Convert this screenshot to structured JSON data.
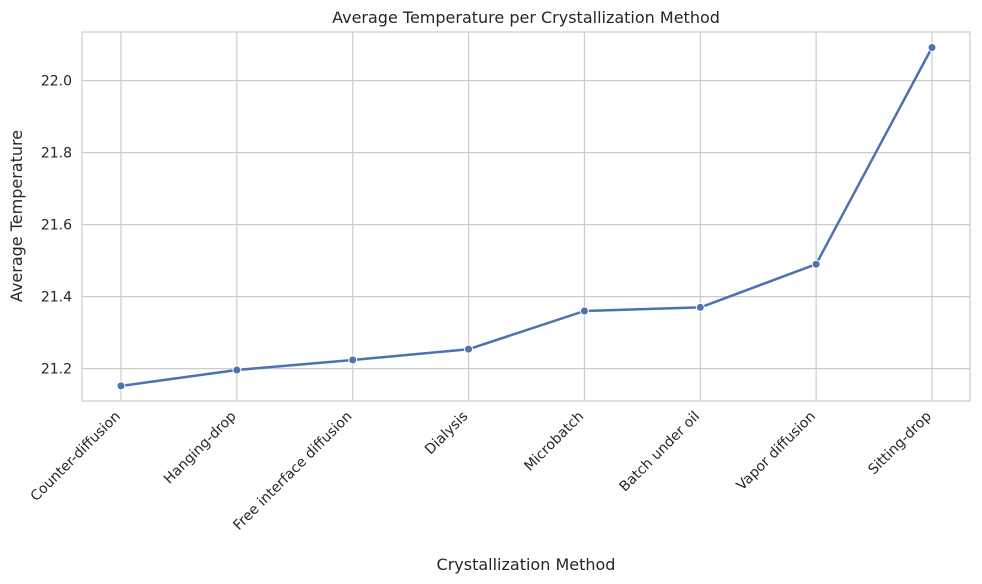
{
  "chart_data": {
    "type": "line",
    "title": "Average Temperature per Crystallization Method",
    "xlabel": "Crystallization Method",
    "ylabel": "Average Temperature",
    "categories": [
      "Counter-diffusion",
      "Hanging-drop",
      "Free interface diffusion",
      "Dialysis",
      "Microbatch",
      "Batch under oil",
      "Vapor diffusion",
      "Sitting-drop"
    ],
    "values": [
      21.152,
      21.196,
      21.224,
      21.254,
      21.36,
      21.37,
      21.49,
      22.092
    ],
    "ylim": [
      21.11,
      22.135
    ],
    "yticks": [
      "21.2",
      "21.4",
      "21.6",
      "21.8",
      "22.0"
    ],
    "grid": true,
    "legend": "none",
    "series_color": "#4c72b0",
    "grid_color": "#cccccc"
  }
}
